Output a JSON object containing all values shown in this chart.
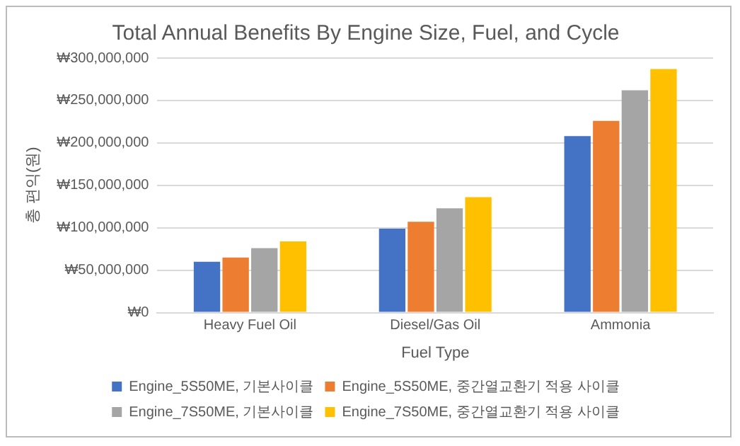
{
  "chart_data": {
    "type": "bar",
    "title": "Total Annual Benefits By Engine Size, Fuel, and Cycle",
    "xlabel": "Fuel Type",
    "ylabel": "총 편익(원)",
    "categories": [
      "Heavy Fuel Oil",
      "Diesel/Gas Oil",
      "Ammonia"
    ],
    "series": [
      {
        "name": "Engine_5S50ME, 기본사이클",
        "color": "#4472c4",
        "values": [
          60000000,
          99000000,
          208000000
        ]
      },
      {
        "name": "Engine_5S50ME, 중간열교환기 적용 사이클",
        "color": "#ed7d31",
        "values": [
          65000000,
          107000000,
          226000000
        ]
      },
      {
        "name": "Engine_7S50ME, 기본사이클",
        "color": "#a5a5a5",
        "values": [
          76000000,
          123000000,
          262000000
        ]
      },
      {
        "name": "Engine_7S50ME, 중간열교환기 적용 사이클",
        "color": "#ffc000",
        "values": [
          84000000,
          136000000,
          287000000
        ]
      }
    ],
    "ylim": [
      0,
      300000000
    ],
    "yticks": [
      {
        "value": 0,
        "label": "₩0"
      },
      {
        "value": 50000000,
        "label": "₩50,000,000"
      },
      {
        "value": 100000000,
        "label": "₩100,000,000"
      },
      {
        "value": 150000000,
        "label": "₩150,000,000"
      },
      {
        "value": 200000000,
        "label": "₩200,000,000"
      },
      {
        "value": 250000000,
        "label": "₩250,000,000"
      },
      {
        "value": 300000000,
        "label": "₩300,000,000"
      }
    ],
    "grid": "y",
    "legend": "bottom"
  }
}
